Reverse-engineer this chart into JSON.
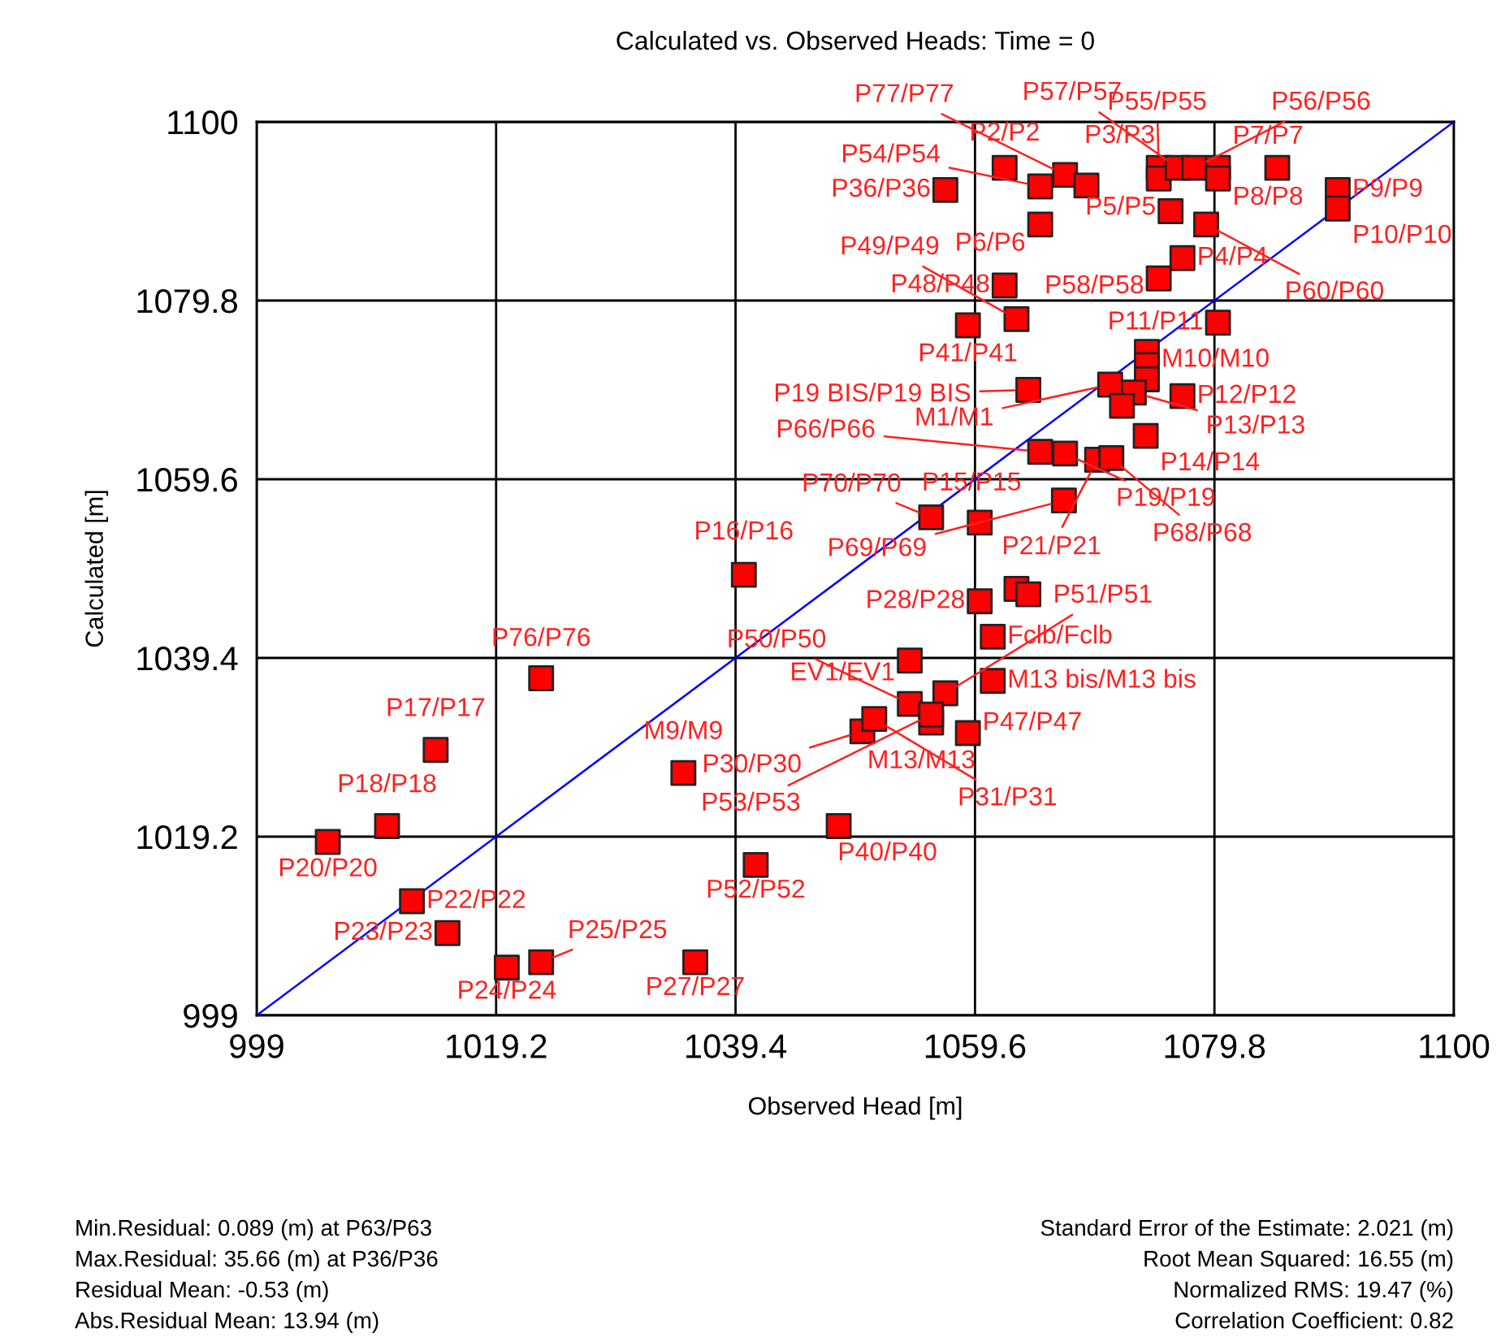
{
  "chart_data": {
    "type": "scatter",
    "title": "Calculated vs. Observed Heads: Time = 0",
    "xlabel": "Observed Head [m]",
    "ylabel": "Calculated [m]",
    "xlim": [
      999,
      1100
    ],
    "ylim": [
      999,
      1100
    ],
    "xticks": [
      999,
      1019.2,
      1039.4,
      1059.6,
      1079.8,
      1100
    ],
    "yticks": [
      999,
      1019.2,
      1039.4,
      1059.6,
      1079.8,
      1100
    ],
    "grid": true,
    "legend": false,
    "marker": "square",
    "series": [
      {
        "color": "#ff0000",
        "x": [
          1040.1,
          1023.0,
          1014.1,
          1035.0,
          1010.0,
          1005.0,
          1041.1,
          1012.1,
          1015.1,
          1020.1,
          1023.0,
          1036.0,
          1055.9,
          1060.0,
          1067.1,
          1069.9,
          1067.2,
          1071.1,
          1065.1,
          1071.0,
          1064.1,
          1060.0,
          1063.1,
          1064.1,
          1057.1,
          1061.1,
          1054.1,
          1054.1,
          1061.1,
          1055.9,
          1055.9,
          1059.0,
          1050.1,
          1051.1,
          1048.1,
          1057.1,
          1062.1,
          1065.1,
          1067.2,
          1069.0,
          1065.1,
          1075.1,
          1075.1,
          1076.7,
          1078.1,
          1080.1,
          1080.1,
          1085.1,
          1090.2,
          1090.2,
          1076.1,
          1079.1,
          1077.1,
          1075.1,
          1062.1,
          1063.1,
          1059.0,
          1080.1,
          1074.1,
          1074.1,
          1074.1,
          1073.0,
          1072.0,
          1077.1,
          1074.0
        ],
        "values": [
          1048.8,
          1037.1,
          1029.0,
          1026.4,
          1020.4,
          1018.6,
          1016.0,
          1011.9,
          1008.3,
          1004.4,
          1005.0,
          1005.0,
          1055.3,
          1054.7,
          1057.2,
          1061.8,
          1062.5,
          1062.0,
          1062.7,
          1070.3,
          1069.7,
          1045.8,
          1047.2,
          1046.6,
          1035.4,
          1041.8,
          1039.1,
          1034.2,
          1036.8,
          1032.1,
          1033.0,
          1030.9,
          1031.1,
          1032.5,
          1020.4,
          1092.3,
          1094.8,
          1092.7,
          1094.0,
          1092.8,
          1088.4,
          1094.8,
          1093.6,
          1094.8,
          1094.8,
          1094.8,
          1093.6,
          1094.8,
          1092.3,
          1090.2,
          1089.9,
          1088.4,
          1084.6,
          1082.3,
          1081.5,
          1077.7,
          1077.0,
          1077.3,
          1074.0,
          1072.5,
          1070.9,
          1069.4,
          1067.9,
          1069.0,
          1064.5
        ]
      },
      {
        "type": "line",
        "marker": "none",
        "color": "#0000ff",
        "x": [
          999,
          1100
        ],
        "values": [
          999,
          1100
        ]
      }
    ],
    "annotations": [
      {
        "text": "P16/P16",
        "x": 1040.1,
        "y": 1048.8
      },
      {
        "text": "P76/P76",
        "x": 1023.0,
        "y": 1037.1
      },
      {
        "text": "P17/P17",
        "x": 1014.1,
        "y": 1029.0
      },
      {
        "text": "M9/M9",
        "x": 1035.0,
        "y": 1026.4
      },
      {
        "text": "P18/P18",
        "x": 1010.0,
        "y": 1020.4
      },
      {
        "text": "P20/P20",
        "x": 1005.0,
        "y": 1018.6
      },
      {
        "text": "P52/P52",
        "x": 1041.1,
        "y": 1016.0
      },
      {
        "text": "P22/P22",
        "x": 1012.1,
        "y": 1011.9
      },
      {
        "text": "P23/P23",
        "x": 1015.1,
        "y": 1008.3
      },
      {
        "text": "P24/P24",
        "x": 1020.1,
        "y": 1004.4
      },
      {
        "text": "P25/P25",
        "x": 1023.0,
        "y": 1005.0
      },
      {
        "text": "P27/P27",
        "x": 1036.0,
        "y": 1005.0
      },
      {
        "text": "P70/P70",
        "x": 1055.9,
        "y": 1055.3
      },
      {
        "text": "P15/P15",
        "x": 1060.0,
        "y": 1054.7
      },
      {
        "text": "P69/P69",
        "x": 1067.1,
        "y": 1057.2
      },
      {
        "text": "P21/P21",
        "x": 1069.9,
        "y": 1061.8
      },
      {
        "text": "P19/P19",
        "x": 1067.2,
        "y": 1062.5
      },
      {
        "text": "P68/P68",
        "x": 1071.1,
        "y": 1062.0
      },
      {
        "text": "M1/M1",
        "x": 1071.0,
        "y": 1070.3
      },
      {
        "text": "P19 BIS/P19 BIS",
        "x": 1064.1,
        "y": 1069.7
      },
      {
        "text": "P66/P66",
        "x": 1065.1,
        "y": 1062.7
      },
      {
        "text": "P28/P28",
        "x": 1060.0,
        "y": 1045.8
      },
      {
        "text": "P51/P51",
        "x": 1057.1,
        "y": 1035.4
      },
      {
        "text": "Fclb/Fclb",
        "x": 1061.1,
        "y": 1041.8
      },
      {
        "text": "EV1/EV1",
        "x": 1054.1,
        "y": 1039.1
      },
      {
        "text": "P50/P50",
        "x": 1054.1,
        "y": 1034.2
      },
      {
        "text": "M13 bis/M13 bis",
        "x": 1061.1,
        "y": 1036.8
      },
      {
        "text": "M13/M13",
        "x": 1055.9,
        "y": 1032.1
      },
      {
        "text": "P53/P53",
        "x": 1055.9,
        "y": 1033.0
      },
      {
        "text": "P47/P47",
        "x": 1059.0,
        "y": 1030.9
      },
      {
        "text": "P30/P30",
        "x": 1050.1,
        "y": 1031.1
      },
      {
        "text": "P31/P31",
        "x": 1051.1,
        "y": 1032.5
      },
      {
        "text": "P40/P40",
        "x": 1048.1,
        "y": 1020.4
      },
      {
        "text": "P36/P36",
        "x": 1057.1,
        "y": 1092.3
      },
      {
        "text": "P2/P2",
        "x": 1062.1,
        "y": 1094.8
      },
      {
        "text": "P54/P54",
        "x": 1065.1,
        "y": 1092.7
      },
      {
        "text": "P77/P77",
        "x": 1067.2,
        "y": 1094.0
      },
      {
        "text": "P6/P6",
        "x": 1065.1,
        "y": 1088.4
      },
      {
        "text": "P55/P55",
        "x": 1075.1,
        "y": 1094.8
      },
      {
        "text": "P3/P3",
        "x": 1075.1,
        "y": 1093.6
      },
      {
        "text": "P57/P57",
        "x": 1076.7,
        "y": 1094.8
      },
      {
        "text": "P56/P56",
        "x": 1078.1,
        "y": 1094.8
      },
      {
        "text": "P7/P7",
        "x": 1080.1,
        "y": 1094.8
      },
      {
        "text": "P8/P8",
        "x": 1080.1,
        "y": 1093.6
      },
      {
        "text": "P9/P9",
        "x": 1090.2,
        "y": 1092.3
      },
      {
        "text": "P10/P10",
        "x": 1090.2,
        "y": 1090.2
      },
      {
        "text": "P5/P5",
        "x": 1076.1,
        "y": 1089.9
      },
      {
        "text": "P60/P60",
        "x": 1079.1,
        "y": 1088.4
      },
      {
        "text": "P4/P4",
        "x": 1077.1,
        "y": 1084.6
      },
      {
        "text": "P58/P58",
        "x": 1075.1,
        "y": 1082.3
      },
      {
        "text": "P48/P48",
        "x": 1062.1,
        "y": 1081.5
      },
      {
        "text": "P49/P49",
        "x": 1063.1,
        "y": 1077.7
      },
      {
        "text": "P41/P41",
        "x": 1059.0,
        "y": 1077.0
      },
      {
        "text": "P11/P11",
        "x": 1080.1,
        "y": 1077.3
      },
      {
        "text": "M10/M10",
        "x": 1074.1,
        "y": 1074.0
      },
      {
        "text": "P13/P13",
        "x": 1073.0,
        "y": 1069.4
      },
      {
        "text": "P12/P12",
        "x": 1077.1,
        "y": 1069.0
      },
      {
        "text": "P14/P14",
        "x": 1074.0,
        "y": 1064.5
      },
      "Min.Residual: 0.089 (m) at P63/P63",
      "Max.Residual: 35.66 (m) at P36/P36",
      "Residual Mean: -0.53 (m)",
      "Abs.Residual Mean: 13.94 (m)",
      "Standard Error of the Estimate: 2.021 (m)",
      "Root Mean Squared: 16.55 (m)",
      "Normalized RMS: 19.47 (%)",
      "Correlation Coefficient: 0.82"
    ]
  }
}
